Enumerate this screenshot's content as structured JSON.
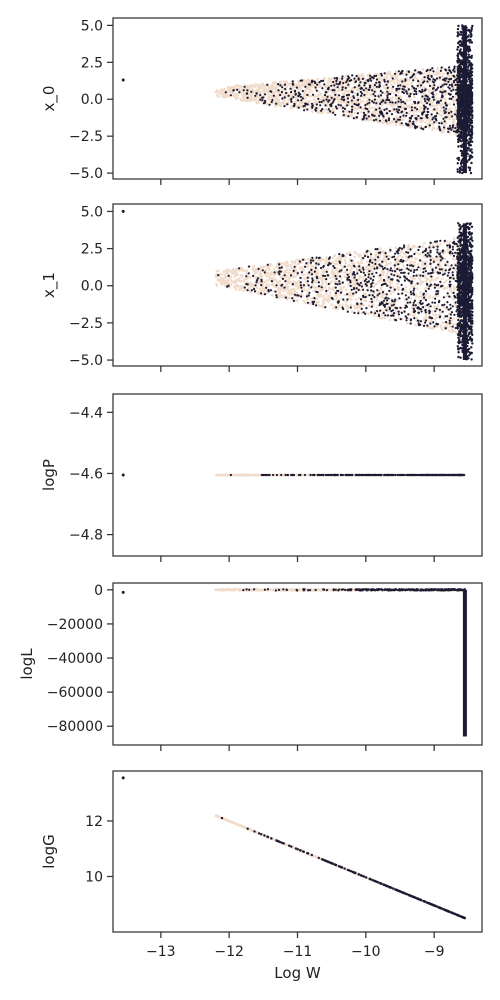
{
  "chart_data": [
    {
      "type": "scatter",
      "ylabel": "x_0",
      "xlabel": "",
      "xlim": [
        -13.7,
        -8.3
      ],
      "ylim": [
        -5.4,
        5.5
      ],
      "xticks": [
        -13,
        -12,
        -11,
        -10,
        -9
      ],
      "xtick_labels_visible": false,
      "yticks": [
        -5.0,
        -2.5,
        0.0,
        2.5,
        5.0
      ],
      "ytick_labels": [
        "−5.0",
        "−2.5",
        "0.0",
        "2.5",
        "5.0"
      ],
      "grid": false,
      "legend": "none",
      "point_color_light": "#f1dccb",
      "point_color_dark": "#1b1b33",
      "points": {
        "outlier": {
          "x": -13.55,
          "y": 1.3
        },
        "dense_column": {
          "x": -8.55,
          "y_range": [
            -5.0,
            5.0
          ]
        },
        "cloud": {
          "x_range": [
            -12.2,
            -8.55
          ],
          "y_envelope_start": [
            0.2,
            0.8
          ],
          "y_envelope_end": [
            -2.5,
            2.3
          ]
        }
      }
    },
    {
      "type": "scatter",
      "ylabel": "x_1",
      "xlabel": "",
      "xlim": [
        -13.7,
        -8.3
      ],
      "ylim": [
        -5.4,
        5.5
      ],
      "xticks": [
        -13,
        -12,
        -11,
        -10,
        -9
      ],
      "xtick_labels_visible": false,
      "yticks": [
        -5.0,
        -2.5,
        0.0,
        2.5,
        5.0
      ],
      "ytick_labels": [
        "−5.0",
        "−2.5",
        "0.0",
        "2.5",
        "5.0"
      ],
      "grid": false,
      "legend": "none",
      "points": {
        "outlier": {
          "x": -13.55,
          "y": 5.0
        },
        "dense_column": {
          "x": -8.55,
          "y_range": [
            -5.0,
            4.2
          ]
        },
        "cloud": {
          "x_range": [
            -12.2,
            -8.55
          ],
          "y_envelope_start": [
            0.0,
            1.0
          ],
          "y_envelope_end": [
            -3.3,
            3.3
          ]
        }
      }
    },
    {
      "type": "scatter",
      "ylabel": "logP",
      "xlabel": "",
      "xlim": [
        -13.7,
        -8.3
      ],
      "ylim": [
        -4.87,
        -4.34
      ],
      "xticks": [
        -13,
        -12,
        -11,
        -10,
        -9
      ],
      "xtick_labels_visible": false,
      "yticks": [
        -4.8,
        -4.6,
        -4.4
      ],
      "ytick_labels": [
        "−4.8",
        "−4.6",
        "−4.4"
      ],
      "grid": false,
      "legend": "none",
      "points": {
        "outlier": {
          "x": -13.55,
          "y": -4.605
        },
        "line": {
          "x_range": [
            -12.2,
            -8.55
          ],
          "y": -4.605
        }
      }
    },
    {
      "type": "scatter",
      "ylabel": "logL",
      "xlabel": "",
      "xlim": [
        -13.7,
        -8.3
      ],
      "ylim": [
        -91000,
        4000
      ],
      "xticks": [
        -13,
        -12,
        -11,
        -10,
        -9
      ],
      "xtick_labels_visible": false,
      "yticks": [
        -80000,
        -60000,
        -40000,
        -20000,
        0
      ],
      "ytick_labels": [
        "−80000",
        "−60000",
        "−40000",
        "−20000",
        "0"
      ],
      "grid": false,
      "legend": "none",
      "points": {
        "outlier": {
          "x": -13.55,
          "y": -1500
        },
        "band": {
          "x_range": [
            -12.2,
            -8.55
          ],
          "y": 0
        },
        "dense_column": {
          "x": -8.55,
          "y_range": [
            -86000,
            0
          ]
        }
      }
    },
    {
      "type": "scatter",
      "ylabel": "logG",
      "xlabel": "Log W",
      "xlim": [
        -13.7,
        -8.3
      ],
      "ylim": [
        8.0,
        13.8
      ],
      "xticks": [
        -13,
        -12,
        -11,
        -10,
        -9
      ],
      "xtick_labels": [
        "−13",
        "−12",
        "−11",
        "−10",
        "−9"
      ],
      "xtick_labels_visible": true,
      "yticks": [
        10,
        12
      ],
      "ytick_labels": [
        "10",
        "12"
      ],
      "grid": false,
      "legend": "none",
      "points": {
        "outlier": {
          "x": -13.55,
          "y": 13.55
        },
        "line": {
          "x_start": -12.2,
          "y_start": 12.2,
          "x_end": -8.55,
          "y_end": 8.5
        }
      }
    }
  ]
}
